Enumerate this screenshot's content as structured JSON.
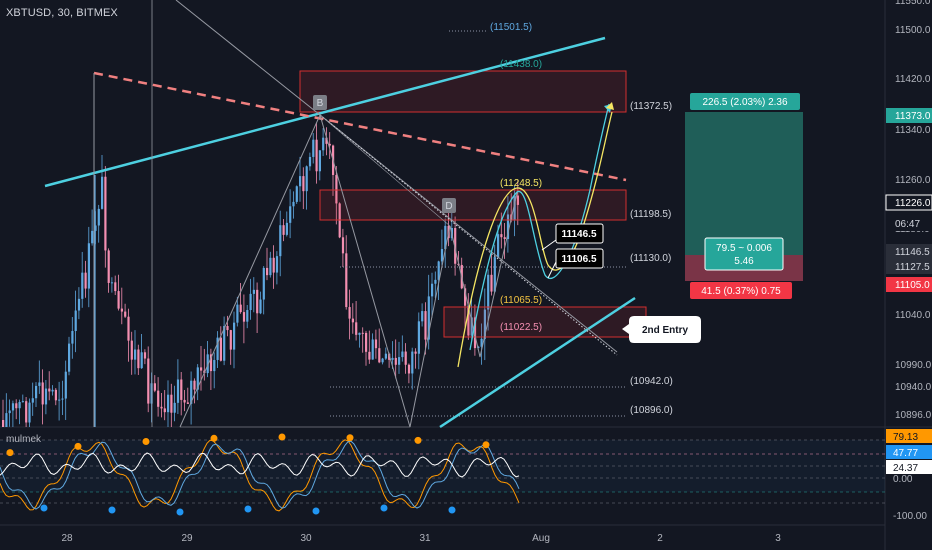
{
  "header": {
    "symbol_line": "XBTUSD, 30, BITMEX"
  },
  "price_axis": {
    "ticks": [
      "11550.0",
      "11500.0",
      "11420.0",
      "11340.0",
      "11260.0",
      "11180.0",
      "11040.0",
      "10990.0",
      "10940.0",
      "10896.0"
    ],
    "badges": [
      {
        "text": "11373.0",
        "bg": "#26a69a",
        "fg": "#ffffff"
      },
      {
        "text": "11226.0",
        "bg": "#131722",
        "fg": "#ffffff",
        "border": "#ffffff"
      },
      {
        "text": "06:47",
        "bg": "#131722",
        "fg": "#d1d4dc"
      },
      {
        "text": "11146.5",
        "bg": "#2a2e39",
        "fg": "#d1d4dc"
      },
      {
        "text": "11127.5",
        "bg": "#2a2e39",
        "fg": "#d1d4dc"
      },
      {
        "text": "11105.0",
        "bg": "#f23645",
        "fg": "#ffffff"
      }
    ]
  },
  "time_axis": {
    "labels": [
      "28",
      "29",
      "30",
      "31",
      "Aug",
      "2",
      "3"
    ]
  },
  "levels": [
    {
      "text": "(11501.5)",
      "color": "#5fa8e0"
    },
    {
      "text": "(11438.0)",
      "color": "#26a69a"
    },
    {
      "text": "(11372.5)",
      "color": "#d1d4dc"
    },
    {
      "text": "(11248.5)",
      "color": "#f5e663"
    },
    {
      "text": "(11198.5)",
      "color": "#d1d4dc"
    },
    {
      "text": "(11130.0)",
      "color": "#d1d4dc"
    },
    {
      "text": "(11065.5)",
      "color": "#f5c542"
    },
    {
      "text": "(11022.5)",
      "color": "#f48fb1"
    },
    {
      "text": "(10942.0)",
      "color": "#d1d4dc"
    },
    {
      "text": "(10896.0)",
      "color": "#d1d4dc"
    }
  ],
  "markers": [
    "B",
    "D"
  ],
  "callouts": [
    "11146.5",
    "11106.5",
    "2nd Entry"
  ],
  "position_tool": {
    "target_label": "226.5 (2.03%) 2.36",
    "ratio_label_1": "79.5 ~ 0.006",
    "ratio_label_2": "5.46",
    "stop_label": "41.5 (0.37%) 0.75"
  },
  "indicator": {
    "name": "mulmek",
    "axis_badges": [
      {
        "text": "79.13",
        "bg": "#ff9800",
        "fg": "#131722"
      },
      {
        "text": "47.77",
        "bg": "#2196f3",
        "fg": "#ffffff"
      },
      {
        "text": "24.37",
        "bg": "#ffffff",
        "fg": "#131722"
      }
    ],
    "axis_ticks": [
      "0.00",
      "-100.00"
    ]
  },
  "colors": {
    "background": "#131722",
    "bull_candle": "#5fa8e0",
    "bear_candle": "#f48fb1",
    "trendline": "#4dd0e1",
    "dashed_resistance": "#f08080",
    "zone_border": "#d32f2f",
    "target_fill": "#1f5e58",
    "stop_fill": "#7a3447"
  }
}
